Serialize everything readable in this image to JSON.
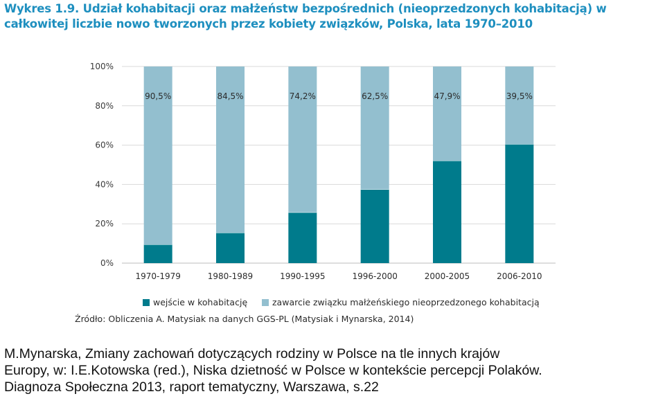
{
  "title": "Wykres 1.9. Udział kohabitacji oraz małżeństw bezpośrednich (nieoprzedzonych kohabitacją) w całkowitej liczbie nowo tworzonych przez kobiety związków, Polska, lata 1970–2010",
  "chart_data": {
    "type": "bar",
    "stacked": true,
    "categories": [
      "1970-1979",
      "1980-1989",
      "1990-1995",
      "1996-2000",
      "2000-2005",
      "2006-2010"
    ],
    "series": [
      {
        "name": "wejście w kohabitację",
        "values": [
          9.5,
          15.5,
          25.8,
          37.5,
          52.1,
          60.5
        ],
        "color": "#007b8c"
      },
      {
        "name": "zawarcie związku małżeńskiego nieoprzedzonego kohabitacją",
        "values": [
          90.5,
          84.5,
          74.2,
          62.5,
          47.9,
          39.5
        ],
        "color": "#93bfcf"
      }
    ],
    "data_labels": [
      "90,5%",
      "84,5%",
      "74,2%",
      "62,5%",
      "47,9%",
      "39,5%"
    ],
    "y_ticks": [
      "0%",
      "20%",
      "40%",
      "60%",
      "80%",
      "100%"
    ],
    "ylim": [
      0,
      100
    ],
    "grid": true,
    "legend_position": "bottom"
  },
  "source": "Źródło: Obliczenia A. Matysiak na danych GGS-PL (Matysiak i Mynarska, 2014)",
  "citation": {
    "line1": "M.Mynarska, Zmiany zachowań dotyczących rodziny w Polsce na tle innych krajów",
    "line2": "Europy, w: I.E.Kotowska (red.), Niska dzietność w Polsce w kontekście percepcji Polaków.",
    "line3": "Diagnoza Społeczna 2013, raport tematyczny, Warszawa, s.22"
  }
}
